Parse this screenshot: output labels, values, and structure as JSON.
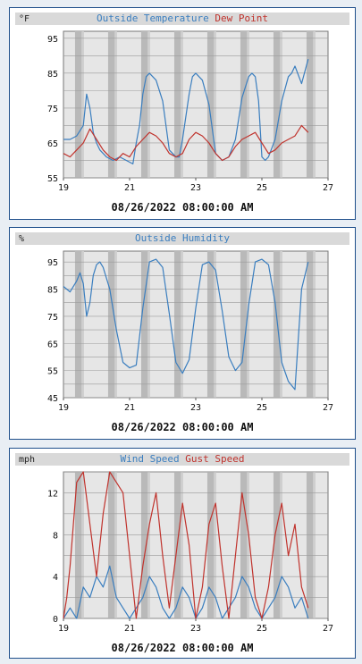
{
  "charts": [
    {
      "unit": "°F",
      "title_parts": [
        {
          "text": "Outside Temperature",
          "color": "#3a7ebf"
        },
        {
          "text": "Dew Point",
          "color": "#c0332d"
        }
      ],
      "date": "08/26/2022 08:00:00 AM",
      "x_ticks": [
        "19",
        "21",
        "23",
        "25",
        "27"
      ],
      "y_ticks": [
        "95",
        "85",
        "75",
        "65",
        "55"
      ]
    },
    {
      "unit": "%",
      "title_parts": [
        {
          "text": "Outside Humidity",
          "color": "#3a7ebf"
        }
      ],
      "date": "08/26/2022 08:00:00 AM",
      "x_ticks": [
        "19",
        "21",
        "23",
        "25",
        "27"
      ],
      "y_ticks": [
        "95",
        "85",
        "75",
        "65",
        "55",
        "45"
      ]
    },
    {
      "unit": "mph",
      "title_parts": [
        {
          "text": "Wind Speed",
          "color": "#3a7ebf"
        },
        {
          "text": "Gust Speed",
          "color": "#c0332d"
        }
      ],
      "date": "08/26/2022 08:00:00 AM",
      "x_ticks": [
        "19",
        "21",
        "23",
        "25",
        "27"
      ],
      "y_ticks": [
        "12",
        "8",
        "4",
        "0"
      ]
    }
  ],
  "chart_data": [
    {
      "type": "line",
      "title": "Outside Temperature Dew Point",
      "xlabel": "08/26/2022 08:00:00 AM",
      "ylabel": "°F",
      "xlim": [
        19,
        27
      ],
      "ylim": [
        55,
        97
      ],
      "grid": true,
      "series": [
        {
          "name": "Outside Temperature",
          "color": "#3a7ebf",
          "x": [
            19.0,
            19.2,
            19.4,
            19.6,
            19.7,
            19.8,
            19.9,
            20.0,
            20.1,
            20.2,
            20.3,
            20.5,
            20.7,
            20.9,
            21.1,
            21.2,
            21.3,
            21.4,
            21.5,
            21.6,
            21.8,
            22.0,
            22.2,
            22.4,
            22.5,
            22.6,
            22.8,
            22.9,
            23.0,
            23.2,
            23.4,
            23.6,
            23.8,
            24.0,
            24.2,
            24.4,
            24.6,
            24.7,
            24.8,
            24.9,
            25.0,
            25.1,
            25.2,
            25.4,
            25.6,
            25.8,
            25.9,
            26.0,
            26.2,
            26.4
          ],
          "y": [
            66,
            66,
            67,
            70,
            79,
            75,
            68,
            65,
            63,
            62,
            61,
            60,
            61,
            60,
            59,
            65,
            70,
            79,
            84,
            85,
            83,
            77,
            63,
            61,
            61,
            66,
            79,
            84,
            85,
            83,
            76,
            62,
            60,
            61,
            66,
            78,
            84,
            85,
            84,
            77,
            61,
            60,
            61,
            66,
            77,
            84,
            85,
            87,
            82,
            89
          ]
        },
        {
          "name": "Dew Point",
          "color": "#c0332d",
          "x": [
            19.0,
            19.2,
            19.4,
            19.6,
            19.8,
            20.0,
            20.2,
            20.4,
            20.6,
            20.8,
            21.0,
            21.2,
            21.4,
            21.6,
            21.8,
            22.0,
            22.2,
            22.4,
            22.6,
            22.8,
            23.0,
            23.2,
            23.4,
            23.6,
            23.8,
            24.0,
            24.2,
            24.4,
            24.6,
            24.8,
            25.0,
            25.2,
            25.4,
            25.6,
            25.8,
            26.0,
            26.2,
            26.4
          ],
          "y": [
            62,
            61,
            63,
            65,
            69,
            66,
            63,
            61,
            60,
            62,
            61,
            64,
            66,
            68,
            67,
            65,
            62,
            61,
            62,
            66,
            68,
            67,
            65,
            62,
            60,
            61,
            64,
            66,
            67,
            68,
            65,
            62,
            63,
            65,
            66,
            67,
            70,
            68
          ]
        }
      ]
    },
    {
      "type": "line",
      "title": "Outside Humidity",
      "xlabel": "08/26/2022 08:00:00 AM",
      "ylabel": "%",
      "xlim": [
        19,
        27
      ],
      "ylim": [
        45,
        99
      ],
      "grid": true,
      "series": [
        {
          "name": "Outside Humidity",
          "color": "#3a7ebf",
          "x": [
            19.0,
            19.2,
            19.4,
            19.5,
            19.6,
            19.7,
            19.8,
            19.9,
            20.0,
            20.1,
            20.2,
            20.4,
            20.6,
            20.8,
            21.0,
            21.2,
            21.4,
            21.6,
            21.8,
            22.0,
            22.2,
            22.4,
            22.6,
            22.8,
            23.0,
            23.2,
            23.4,
            23.6,
            23.8,
            24.0,
            24.2,
            24.4,
            24.6,
            24.8,
            25.0,
            25.2,
            25.4,
            25.6,
            25.8,
            26.0,
            26.2,
            26.4
          ],
          "y": [
            86,
            84,
            88,
            91,
            87,
            75,
            80,
            90,
            94,
            95,
            93,
            85,
            70,
            58,
            56,
            57,
            78,
            95,
            96,
            93,
            76,
            58,
            54,
            59,
            78,
            94,
            95,
            92,
            77,
            60,
            55,
            58,
            79,
            95,
            96,
            94,
            80,
            58,
            51,
            48,
            85,
            95
          ]
        }
      ]
    },
    {
      "type": "line",
      "title": "Wind Speed Gust Speed",
      "xlabel": "08/26/2022 08:00:00 AM",
      "ylabel": "mph",
      "xlim": [
        19,
        27
      ],
      "ylim": [
        0,
        14
      ],
      "grid": true,
      "series": [
        {
          "name": "Wind Speed",
          "color": "#3a7ebf",
          "x": [
            19.0,
            19.2,
            19.4,
            19.6,
            19.8,
            20.0,
            20.2,
            20.4,
            20.6,
            20.8,
            21.0,
            21.2,
            21.4,
            21.6,
            21.8,
            22.0,
            22.2,
            22.4,
            22.6,
            22.8,
            23.0,
            23.2,
            23.4,
            23.6,
            23.8,
            24.0,
            24.2,
            24.4,
            24.6,
            24.8,
            25.0,
            25.2,
            25.4,
            25.6,
            25.8,
            26.0,
            26.2,
            26.4
          ],
          "y": [
            0,
            1,
            0,
            3,
            2,
            4,
            3,
            5,
            2,
            1,
            0,
            1,
            2,
            4,
            3,
            1,
            0,
            1,
            3,
            2,
            0,
            1,
            3,
            2,
            0,
            1,
            2,
            4,
            3,
            1,
            0,
            1,
            2,
            4,
            3,
            1,
            2,
            0
          ]
        },
        {
          "name": "Gust Speed",
          "color": "#c0332d",
          "x": [
            19.0,
            19.1,
            19.2,
            19.4,
            19.6,
            19.8,
            20.0,
            20.2,
            20.4,
            20.6,
            20.8,
            21.0,
            21.2,
            21.4,
            21.6,
            21.8,
            22.0,
            22.2,
            22.4,
            22.6,
            22.8,
            23.0,
            23.2,
            23.4,
            23.6,
            23.8,
            24.0,
            24.2,
            24.4,
            24.6,
            24.8,
            25.0,
            25.2,
            25.4,
            25.6,
            25.8,
            26.0,
            26.2,
            26.4
          ],
          "y": [
            0,
            2,
            5,
            13,
            14,
            9,
            4,
            10,
            14,
            13,
            12,
            6,
            0,
            5,
            9,
            12,
            6,
            1,
            6,
            11,
            7,
            0,
            3,
            9,
            11,
            5,
            0,
            6,
            12,
            8,
            2,
            0,
            3,
            8,
            11,
            6,
            9,
            3,
            1
          ]
        }
      ]
    }
  ]
}
